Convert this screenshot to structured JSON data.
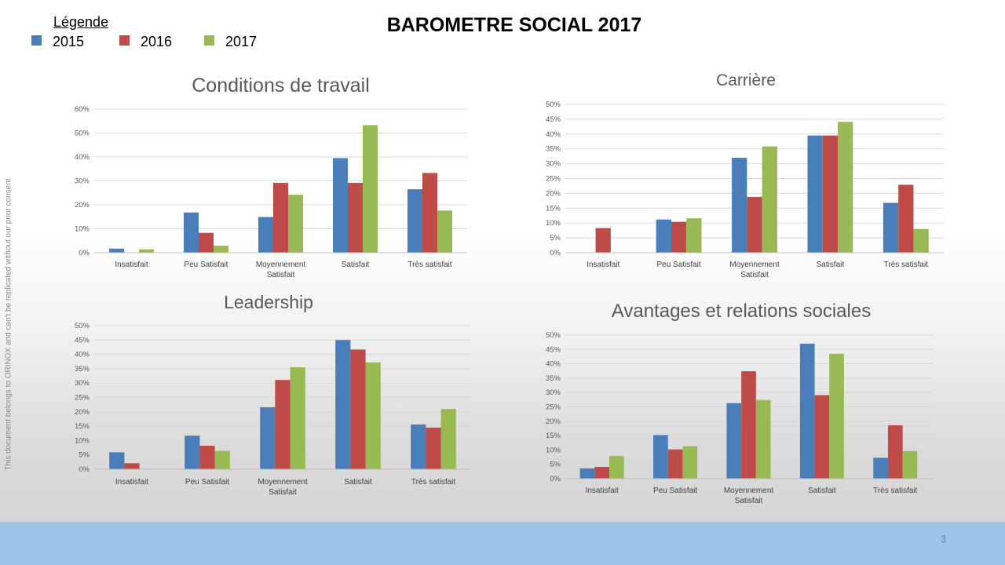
{
  "slide": {
    "title": "BAROMETRE SOCIAL 2017",
    "page_number": "3",
    "watermark": "This document belongs to ORINOX and can't be replicated without our prior consent"
  },
  "legend": {
    "title": "Légende",
    "items": [
      {
        "label": "2015",
        "color": "#4a7ebb"
      },
      {
        "label": "2016",
        "color": "#be4b48"
      },
      {
        "label": "2017",
        "color": "#98b954"
      }
    ]
  },
  "colors": {
    "series": [
      "#4a7ebb",
      "#be4b48",
      "#98b954"
    ],
    "footer": "#9dc3e6"
  },
  "chart_data": [
    {
      "type": "bar",
      "title": "Conditions de travail",
      "categories": [
        "Insatisfait",
        "Peu Satisfait",
        "Moyennement Satisfait",
        "Satisfait",
        "Très satisfait"
      ],
      "series": [
        {
          "name": "2015",
          "values": [
            1.7,
            16.8,
            14.9,
            39.5,
            26.5
          ]
        },
        {
          "name": "2016",
          "values": [
            0,
            8.3,
            29.2,
            29.2,
            33.3
          ]
        },
        {
          "name": "2017",
          "values": [
            1.4,
            2.9,
            24.2,
            53.3,
            17.6
          ]
        }
      ],
      "ylim": [
        0,
        60
      ],
      "yticks": [
        "0%",
        "10%",
        "20%",
        "30%",
        "40%",
        "50%",
        "60%"
      ],
      "grid": true
    },
    {
      "type": "bar",
      "title": "Carrière",
      "categories": [
        "Insatisfait",
        "Peu Satisfait",
        "Moyennement Satisfait",
        "Satisfait",
        "Très satisfait"
      ],
      "series": [
        {
          "name": "2015",
          "values": [
            0,
            11.2,
            32,
            39.5,
            16.8
          ]
        },
        {
          "name": "2016",
          "values": [
            8.3,
            10.4,
            18.8,
            39.5,
            22.9
          ]
        },
        {
          "name": "2017",
          "values": [
            0,
            11.6,
            35.8,
            44.1,
            8
          ]
        }
      ],
      "ylim": [
        0,
        50
      ],
      "yticks": [
        "0%",
        "5%",
        "10%",
        "15%",
        "20%",
        "25%",
        "30%",
        "35%",
        "40%",
        "45%",
        "50%"
      ],
      "grid": true
    },
    {
      "type": "bar",
      "title": "Leadership",
      "categories": [
        "Insatisfait",
        "Peu Satisfait",
        "Moyennement Satisfait",
        "Satisfait",
        "Très satisfait"
      ],
      "series": [
        {
          "name": "2015",
          "values": [
            5.9,
            11.7,
            21.6,
            45,
            15.6
          ]
        },
        {
          "name": "2016",
          "values": [
            2.1,
            8.2,
            31.1,
            41.7,
            14.5
          ]
        },
        {
          "name": "2017",
          "values": [
            0,
            6.4,
            35.5,
            37.2,
            21
          ]
        }
      ],
      "ylim": [
        0,
        50
      ],
      "yticks": [
        "0%",
        "5%",
        "10%",
        "15%",
        "20%",
        "25%",
        "30%",
        "35%",
        "40%",
        "45%",
        "50%"
      ],
      "grid": true
    },
    {
      "type": "bar",
      "title": "Avantages et relations sociales",
      "categories": [
        "Insatisfait",
        "Peu Satisfait",
        "Moyennement Satisfait",
        "Satisfait",
        "Très satisfait"
      ],
      "series": [
        {
          "name": "2015",
          "values": [
            3.6,
            15.2,
            26.3,
            47,
            7.3
          ]
        },
        {
          "name": "2016",
          "values": [
            4.1,
            10.2,
            37.4,
            29.1,
            18.6
          ]
        },
        {
          "name": "2017",
          "values": [
            7.9,
            11.3,
            27.4,
            43.5,
            9.6
          ]
        }
      ],
      "ylim": [
        0,
        50
      ],
      "yticks": [
        "0%",
        "5%",
        "10%",
        "15%",
        "20%",
        "25%",
        "30%",
        "35%",
        "40%",
        "45%",
        "50%"
      ],
      "grid": true
    }
  ]
}
